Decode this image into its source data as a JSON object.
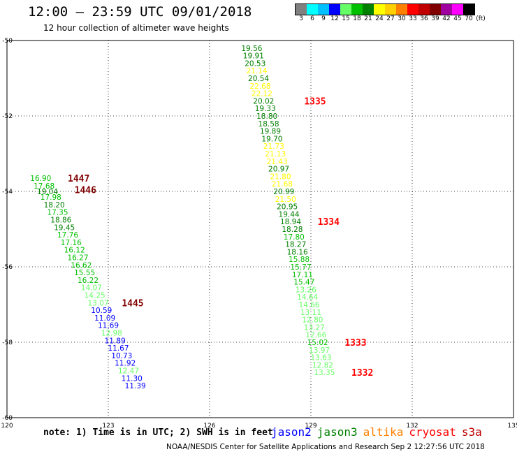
{
  "header": {
    "title": "12:00 – 23:59 UTC 09/01/2018",
    "subtitle": "12 hour collection of altimeter wave heights"
  },
  "color_scale": {
    "unit": "(ft)",
    "bins": [
      {
        "label": "3",
        "color": "#808080"
      },
      {
        "label": "6",
        "color": "#00ffff"
      },
      {
        "label": "9",
        "color": "#00c0ff"
      },
      {
        "label": "12",
        "color": "#0000ff"
      },
      {
        "label": "15",
        "color": "#66ff66"
      },
      {
        "label": "18",
        "color": "#00c000"
      },
      {
        "label": "21",
        "color": "#008000"
      },
      {
        "label": "24",
        "color": "#ffff00"
      },
      {
        "label": "27",
        "color": "#ffd000"
      },
      {
        "label": "30",
        "color": "#ff8000"
      },
      {
        "label": "33",
        "color": "#ff0000"
      },
      {
        "label": "36",
        "color": "#c00000"
      },
      {
        "label": "39",
        "color": "#800000"
      },
      {
        "label": "42",
        "color": "#a000a0"
      },
      {
        "label": "45",
        "color": "#ff00ff"
      },
      {
        "label": "70",
        "color": "#000000"
      }
    ]
  },
  "map": {
    "lon_range": [
      120,
      135
    ],
    "lat_range": [
      -60,
      -50
    ],
    "lon_ticks": [
      "120",
      "123",
      "126",
      "129",
      "132",
      "135"
    ],
    "lat_ticks": [
      "-50",
      "-52",
      "-54",
      "-56",
      "-58",
      "-60"
    ],
    "tracks": [
      {
        "satellite": "jason3",
        "points": [
          {
            "lon": 121.0,
            "lat": -53.65,
            "v": "16.90"
          },
          {
            "lon": 121.1,
            "lat": -53.85,
            "v": "17.68"
          },
          {
            "lon": 121.2,
            "lat": -54.0,
            "v": "19.04"
          },
          {
            "lon": 121.3,
            "lat": -54.15,
            "v": "17.98"
          },
          {
            "lon": 121.4,
            "lat": -54.35,
            "v": "18.20"
          },
          {
            "lon": 121.5,
            "lat": -54.55,
            "v": "17.35"
          },
          {
            "lon": 121.6,
            "lat": -54.75,
            "v": "18.86"
          },
          {
            "lon": 121.7,
            "lat": -54.95,
            "v": "19.45"
          },
          {
            "lon": 121.8,
            "lat": -55.15,
            "v": "17.76"
          },
          {
            "lon": 121.9,
            "lat": -55.35,
            "v": "17.16"
          },
          {
            "lon": 122.0,
            "lat": -55.55,
            "v": "16.12"
          },
          {
            "lon": 122.1,
            "lat": -55.75,
            "v": "16.27"
          },
          {
            "lon": 122.2,
            "lat": -55.95,
            "v": "16.62"
          },
          {
            "lon": 122.3,
            "lat": -56.15,
            "v": "15.55"
          },
          {
            "lon": 122.4,
            "lat": -56.35,
            "v": "16.22"
          },
          {
            "lon": 122.5,
            "lat": -56.55,
            "v": "14.07"
          },
          {
            "lon": 122.6,
            "lat": -56.75,
            "v": "14.25"
          },
          {
            "lon": 122.7,
            "lat": -56.95,
            "v": "13.07"
          },
          {
            "lon": 122.8,
            "lat": -57.15,
            "v": "10.59"
          },
          {
            "lon": 122.9,
            "lat": -57.35,
            "v": "11.09"
          },
          {
            "lon": 123.0,
            "lat": -57.55,
            "v": "11.69"
          },
          {
            "lon": 123.1,
            "lat": -57.75,
            "v": "12.98"
          },
          {
            "lon": 123.2,
            "lat": -57.95,
            "v": "11.89"
          },
          {
            "lon": 123.3,
            "lat": -58.15,
            "v": "11.67"
          },
          {
            "lon": 123.4,
            "lat": -58.35,
            "v": "10.73"
          },
          {
            "lon": 123.5,
            "lat": -58.55,
            "v": "11.92"
          },
          {
            "lon": 123.6,
            "lat": -58.75,
            "v": "12.47"
          },
          {
            "lon": 123.7,
            "lat": -58.95,
            "v": "11.30"
          },
          {
            "lon": 123.8,
            "lat": -59.15,
            "v": "11.39"
          }
        ]
      },
      {
        "satellite": "jason3",
        "points": [
          {
            "lon": 127.25,
            "lat": -50.2,
            "v": "19.56"
          },
          {
            "lon": 127.3,
            "lat": -50.4,
            "v": "19.91"
          },
          {
            "lon": 127.35,
            "lat": -50.6,
            "v": "20.53"
          },
          {
            "lon": 127.4,
            "lat": -50.8,
            "v": "21.14"
          },
          {
            "lon": 127.45,
            "lat": -51.0,
            "v": "20.54"
          },
          {
            "lon": 127.5,
            "lat": -51.2,
            "v": "22.68"
          },
          {
            "lon": 127.55,
            "lat": -51.4,
            "v": "22.12"
          },
          {
            "lon": 127.6,
            "lat": -51.6,
            "v": "20.02"
          },
          {
            "lon": 127.65,
            "lat": -51.8,
            "v": "19.33"
          },
          {
            "lon": 127.7,
            "lat": -52.0,
            "v": "18.80"
          },
          {
            "lon": 127.75,
            "lat": -52.2,
            "v": "18.58"
          },
          {
            "lon": 127.8,
            "lat": -52.4,
            "v": "19.89"
          },
          {
            "lon": 127.85,
            "lat": -52.6,
            "v": "19.70"
          },
          {
            "lon": 127.9,
            "lat": -52.8,
            "v": "21.73"
          },
          {
            "lon": 127.95,
            "lat": -53.0,
            "v": "21.13"
          },
          {
            "lon": 128.0,
            "lat": -53.2,
            "v": "21.43"
          },
          {
            "lon": 128.05,
            "lat": -53.4,
            "v": "20.97"
          },
          {
            "lon": 128.1,
            "lat": -53.6,
            "v": "21.80"
          },
          {
            "lon": 128.15,
            "lat": -53.8,
            "v": "21.68"
          },
          {
            "lon": 128.2,
            "lat": -54.0,
            "v": "20.99"
          },
          {
            "lon": 128.25,
            "lat": -54.2,
            "v": "21.50"
          },
          {
            "lon": 128.3,
            "lat": -54.4,
            "v": "20.95"
          },
          {
            "lon": 128.35,
            "lat": -54.6,
            "v": "19.44"
          },
          {
            "lon": 128.4,
            "lat": -54.8,
            "v": "18.94"
          },
          {
            "lon": 128.45,
            "lat": -55.0,
            "v": "18.28"
          },
          {
            "lon": 128.5,
            "lat": -55.2,
            "v": "17.80"
          },
          {
            "lon": 128.55,
            "lat": -55.4,
            "v": "18.27"
          },
          {
            "lon": 128.6,
            "lat": -55.6,
            "v": "18.16"
          },
          {
            "lon": 128.65,
            "lat": -55.8,
            "v": "15.88"
          },
          {
            "lon": 128.7,
            "lat": -56.0,
            "v": "15.77"
          },
          {
            "lon": 128.75,
            "lat": -56.2,
            "v": "17.11"
          },
          {
            "lon": 128.8,
            "lat": -56.4,
            "v": "15.47"
          },
          {
            "lon": 128.85,
            "lat": -56.6,
            "v": "13.26"
          },
          {
            "lon": 128.9,
            "lat": -56.8,
            "v": "14.64"
          },
          {
            "lon": 128.95,
            "lat": -57.0,
            "v": "14.66"
          },
          {
            "lon": 129.0,
            "lat": -57.2,
            "v": "13.11"
          },
          {
            "lon": 129.05,
            "lat": -57.4,
            "v": "12.80"
          },
          {
            "lon": 129.1,
            "lat": -57.6,
            "v": "13.27"
          },
          {
            "lon": 129.15,
            "lat": -57.8,
            "v": "12.66"
          },
          {
            "lon": 129.2,
            "lat": -58.0,
            "v": "15.02"
          },
          {
            "lon": 129.25,
            "lat": -58.2,
            "v": "13.97"
          },
          {
            "lon": 129.3,
            "lat": -58.4,
            "v": "13.63"
          },
          {
            "lon": 129.35,
            "lat": -58.6,
            "v": "12.82"
          },
          {
            "lon": 129.4,
            "lat": -58.8,
            "v": "13.35"
          }
        ]
      }
    ],
    "time_labels": [
      {
        "lon": 121.8,
        "lat": -53.65,
        "text": "1447",
        "color": "#800000"
      },
      {
        "lon": 122.0,
        "lat": -53.95,
        "text": "1446",
        "color": "#800000"
      },
      {
        "lon": 123.4,
        "lat": -56.95,
        "text": "1445",
        "color": "#800000"
      },
      {
        "lon": 128.8,
        "lat": -51.6,
        "text": "1335",
        "color": "#ff0000"
      },
      {
        "lon": 129.2,
        "lat": -54.8,
        "text": "1334",
        "color": "#ff0000"
      },
      {
        "lon": 130.0,
        "lat": -58.0,
        "text": "1333",
        "color": "#ff0000"
      },
      {
        "lon": 130.2,
        "lat": -58.8,
        "text": "1332",
        "color": "#ff0000"
      }
    ]
  },
  "note": "note:  1) Time is in UTC;  2) SWH is in feet",
  "legend": [
    {
      "name": "jason2",
      "color": "#0000ff"
    },
    {
      "name": "jason3",
      "color": "#008000"
    },
    {
      "name": "altika",
      "color": "#ff8000"
    },
    {
      "name": "cryosat",
      "color": "#ff0000"
    },
    {
      "name": "s3a",
      "color": "#c00000"
    }
  ],
  "credit": "NOAA/NESDIS Center for Satellite Applications and Research   Sep  2 12:27:56 UTC 2018"
}
